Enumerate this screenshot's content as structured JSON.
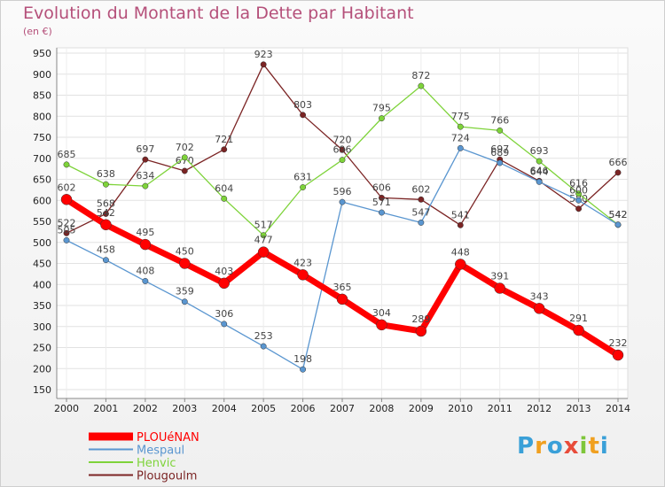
{
  "chart_data": {
    "type": "line",
    "title": "Evolution du Montant de la Dette par Habitant",
    "subtitle": "(en €)",
    "xlabel": "",
    "ylabel": "",
    "x": [
      "2000",
      "2001",
      "2002",
      "2003",
      "2004",
      "2005",
      "2006",
      "2007",
      "2008",
      "2009",
      "2010",
      "2011",
      "2012",
      "2013",
      "2014"
    ],
    "ylim": [
      150,
      950
    ],
    "yticks": [
      "150",
      "200",
      "250",
      "300",
      "350",
      "400",
      "450",
      "500",
      "550",
      "600",
      "650",
      "700",
      "750",
      "800",
      "850",
      "900",
      "950"
    ],
    "grid": true,
    "legend_position": "bottom-left",
    "series": [
      {
        "name": "PLOUéNAN",
        "color": "#ff0000",
        "values": [
          602,
          542,
          495,
          450,
          403,
          477,
          423,
          365,
          304,
          289,
          448,
          391,
          343,
          291,
          232
        ]
      },
      {
        "name": "Mespaul",
        "color": "#5a96d0",
        "values": [
          505,
          458,
          408,
          359,
          306,
          253,
          198,
          596,
          571,
          547,
          724,
          689,
          644,
          600,
          542
        ]
      },
      {
        "name": "Henvic",
        "color": "#7ed33a",
        "values": [
          685,
          638,
          634,
          702,
          604,
          517,
          631,
          696,
          795,
          872,
          775,
          766,
          693,
          616,
          542
        ]
      },
      {
        "name": "Plougoulm",
        "color": "#7b2424",
        "values": [
          522,
          568,
          697,
          670,
          721,
          923,
          803,
          720,
          606,
          602,
          541,
          697,
          646,
          580,
          666
        ]
      }
    ]
  },
  "logo": {
    "text": "Proxiti",
    "letters": [
      "P",
      "r",
      "o",
      "x",
      "i",
      "t",
      "i"
    ],
    "colors": [
      "#3aa0d8",
      "#f0a020",
      "#3aa0d8",
      "#e84c3a",
      "#7ec63a",
      "#f0a020",
      "#3aa0d8"
    ]
  }
}
